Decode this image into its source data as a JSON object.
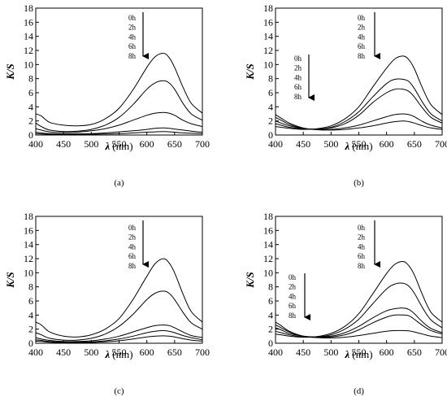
{
  "chart_data": [
    {
      "type": "line",
      "panel_label": "(a)",
      "xlabel_symbol": "λ",
      "xlabel_unit": "(nm)",
      "ylabel": "K/S",
      "xlim": [
        400,
        700
      ],
      "ylim": [
        0,
        18
      ],
      "xticks": [
        400,
        450,
        500,
        550,
        600,
        650,
        700
      ],
      "yticks": [
        0,
        2,
        4,
        6,
        8,
        10,
        12,
        14,
        16,
        18
      ],
      "legend_groups": [
        {
          "labels": [
            "0h",
            "2h",
            "4h",
            "6h",
            "8h"
          ],
          "arrow": true
        }
      ],
      "x": [
        400,
        410,
        425,
        450,
        475,
        500,
        525,
        550,
        575,
        600,
        615,
        630,
        640,
        650,
        665,
        680,
        700
      ],
      "series": [
        {
          "values": [
            3.0,
            2.7,
            1.8,
            1.4,
            1.3,
            1.5,
            2.3,
            3.8,
            6.4,
            9.6,
            11.1,
            11.6,
            11.0,
            9.6,
            6.8,
            4.5,
            3.1
          ]
        },
        {
          "values": [
            1.7,
            1.2,
            0.7,
            0.5,
            0.55,
            0.8,
            1.4,
            2.5,
            4.3,
            6.5,
            7.4,
            7.7,
            7.4,
            6.5,
            4.5,
            3.0,
            2.1
          ]
        },
        {
          "values": [
            0.9,
            0.7,
            0.45,
            0.35,
            0.4,
            0.6,
            0.9,
            1.4,
            2.1,
            2.8,
            3.1,
            3.2,
            3.1,
            2.8,
            2.1,
            1.6,
            1.2
          ]
        },
        {
          "values": [
            0.4,
            0.3,
            0.2,
            0.15,
            0.17,
            0.2,
            0.3,
            0.45,
            0.6,
            0.8,
            0.95,
            1.0,
            0.95,
            0.85,
            0.7,
            0.55,
            0.4
          ]
        },
        {
          "values": [
            0.2,
            0.15,
            0.1,
            0.08,
            0.08,
            0.1,
            0.15,
            0.2,
            0.3,
            0.4,
            0.45,
            0.5,
            0.45,
            0.4,
            0.3,
            0.25,
            0.2
          ]
        }
      ]
    },
    {
      "type": "line",
      "panel_label": "(b)",
      "xlabel_symbol": "λ",
      "xlabel_unit": "(nm)",
      "ylabel": "K/S",
      "xlim": [
        400,
        700
      ],
      "ylim": [
        0,
        18
      ],
      "xticks": [
        400,
        450,
        500,
        550,
        600,
        650,
        700
      ],
      "yticks": [
        0,
        2,
        4,
        6,
        8,
        10,
        12,
        14,
        16,
        18
      ],
      "legend_groups": [
        {
          "labels": [
            "0h",
            "2h",
            "4h",
            "6h",
            "8h"
          ],
          "arrow": true
        },
        {
          "labels": [
            "0h",
            "2h",
            "4h",
            "6h",
            "8h"
          ],
          "arrow": true
        }
      ],
      "x": [
        400,
        410,
        425,
        450,
        475,
        500,
        525,
        550,
        575,
        600,
        615,
        630,
        640,
        650,
        665,
        680,
        700
      ],
      "series": [
        {
          "values": [
            1.2,
            1.1,
            0.95,
            0.8,
            0.9,
            1.3,
            2.3,
            4.0,
            6.8,
            9.5,
            10.8,
            11.2,
            10.7,
            9.4,
            6.6,
            4.3,
            2.9
          ]
        },
        {
          "values": [
            1.6,
            1.4,
            1.1,
            0.85,
            0.85,
            1.1,
            1.9,
            3.3,
            5.4,
            7.3,
            7.9,
            7.9,
            7.6,
            6.6,
            4.6,
            3.0,
            2.0
          ]
        },
        {
          "values": [
            2.0,
            1.7,
            1.3,
            0.9,
            0.85,
            1.0,
            1.6,
            2.8,
            4.6,
            6.0,
            6.5,
            6.5,
            6.2,
            5.4,
            3.8,
            2.5,
            1.7
          ]
        },
        {
          "values": [
            2.5,
            2.1,
            1.5,
            0.95,
            0.8,
            0.8,
            1.0,
            1.4,
            2.0,
            2.6,
            2.9,
            3.0,
            2.9,
            2.6,
            1.9,
            1.4,
            1.0
          ]
        },
        {
          "values": [
            2.9,
            2.4,
            1.7,
            1.0,
            0.75,
            0.7,
            0.8,
            1.0,
            1.3,
            1.7,
            1.9,
            2.0,
            1.9,
            1.7,
            1.3,
            1.0,
            0.8
          ]
        }
      ]
    },
    {
      "type": "line",
      "panel_label": "(c)",
      "xlabel_symbol": "λ",
      "xlabel_unit": "(nm)",
      "ylabel": "K/S",
      "xlim": [
        400,
        700
      ],
      "ylim": [
        0,
        18
      ],
      "xticks": [
        400,
        450,
        500,
        550,
        600,
        650,
        700
      ],
      "yticks": [
        0,
        2,
        4,
        6,
        8,
        10,
        12,
        14,
        16,
        18
      ],
      "legend_groups": [
        {
          "labels": [
            "0h",
            "2h",
            "4h",
            "6h",
            "8h"
          ],
          "arrow": true
        }
      ],
      "x": [
        400,
        410,
        425,
        450,
        475,
        500,
        525,
        550,
        575,
        600,
        615,
        630,
        640,
        650,
        665,
        680,
        700
      ],
      "series": [
        {
          "values": [
            3.0,
            2.6,
            1.6,
            1.0,
            0.9,
            1.2,
            2.0,
            3.5,
            6.2,
            9.5,
            11.3,
            12.0,
            11.4,
            10.0,
            7.0,
            4.5,
            3.0
          ]
        },
        {
          "values": [
            1.5,
            1.2,
            0.7,
            0.45,
            0.45,
            0.7,
            1.3,
            2.4,
            4.1,
            6.2,
            7.1,
            7.4,
            7.1,
            6.2,
            4.4,
            2.9,
            2.0
          ]
        },
        {
          "values": [
            0.8,
            0.6,
            0.4,
            0.25,
            0.25,
            0.35,
            0.6,
            1.0,
            1.6,
            2.2,
            2.5,
            2.6,
            2.5,
            2.2,
            1.6,
            1.1,
            0.8
          ]
        },
        {
          "values": [
            0.5,
            0.4,
            0.25,
            0.15,
            0.15,
            0.2,
            0.35,
            0.6,
            1.0,
            1.5,
            1.7,
            1.8,
            1.7,
            1.5,
            1.1,
            0.8,
            0.5
          ]
        },
        {
          "values": [
            0.3,
            0.25,
            0.15,
            0.1,
            0.1,
            0.12,
            0.2,
            0.35,
            0.6,
            0.9,
            1.0,
            1.05,
            1.0,
            0.9,
            0.65,
            0.45,
            0.3
          ]
        }
      ]
    },
    {
      "type": "line",
      "panel_label": "(d)",
      "xlabel_symbol": "λ",
      "xlabel_unit": "(nm)",
      "ylabel": "K/S",
      "xlim": [
        400,
        700
      ],
      "ylim": [
        0,
        18
      ],
      "xticks": [
        400,
        450,
        500,
        550,
        600,
        650,
        700
      ],
      "yticks": [
        0,
        2,
        4,
        6,
        8,
        10,
        12,
        14,
        16,
        18
      ],
      "legend_groups": [
        {
          "labels": [
            "0h",
            "2h",
            "4h",
            "6h",
            "8h"
          ],
          "arrow": true
        },
        {
          "labels": [
            "0h",
            "2h",
            "4h",
            "6h",
            "8h"
          ],
          "arrow": true
        }
      ],
      "x": [
        400,
        410,
        425,
        450,
        475,
        500,
        525,
        550,
        575,
        600,
        615,
        630,
        640,
        650,
        665,
        680,
        700
      ],
      "series": [
        {
          "values": [
            1.3,
            1.2,
            1.0,
            0.85,
            0.95,
            1.4,
            2.4,
            4.2,
            7.0,
            9.9,
            11.2,
            11.6,
            11.0,
            9.7,
            6.8,
            4.4,
            3.0
          ]
        },
        {
          "values": [
            1.7,
            1.5,
            1.2,
            0.9,
            0.9,
            1.2,
            2.0,
            3.4,
            5.6,
            7.7,
            8.4,
            8.5,
            8.1,
            7.1,
            5.0,
            3.3,
            2.2
          ]
        },
        {
          "values": [
            2.2,
            1.9,
            1.4,
            1.0,
            0.9,
            1.0,
            1.5,
            2.4,
            3.6,
            4.6,
            4.9,
            5.0,
            4.8,
            4.2,
            3.0,
            2.1,
            1.5
          ]
        },
        {
          "values": [
            2.6,
            2.2,
            1.6,
            1.0,
            0.85,
            0.9,
            1.2,
            1.9,
            2.9,
            3.7,
            4.0,
            4.0,
            3.9,
            3.4,
            2.5,
            1.8,
            1.3
          ]
        },
        {
          "values": [
            3.0,
            2.5,
            1.7,
            1.0,
            0.8,
            0.75,
            0.85,
            1.1,
            1.4,
            1.7,
            1.8,
            1.8,
            1.75,
            1.6,
            1.3,
            1.0,
            0.8
          ]
        }
      ]
    }
  ]
}
